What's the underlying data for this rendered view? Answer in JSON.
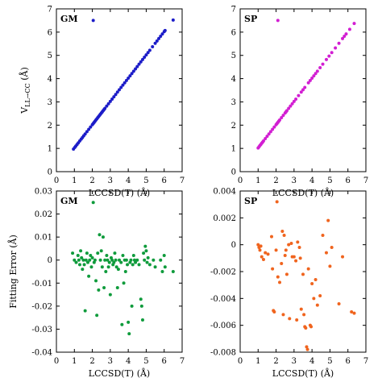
{
  "chart_data": [
    {
      "type": "scatter",
      "panel_label": "GM",
      "xlabel": "LCCSD(T) (Å)",
      "ylabel": "V_LL→CC (Å)",
      "ylabel_main": "V",
      "ylabel_sub": "LL→CC",
      "ylabel_unit": " (Å)",
      "xlim": [
        0,
        7
      ],
      "ylim": [
        0,
        7
      ],
      "xticks": [
        "0",
        "1",
        "2",
        "3",
        "4",
        "5",
        "6",
        "7"
      ],
      "yticks": [
        "0",
        "1",
        "2",
        "3",
        "4",
        "5",
        "6",
        "7"
      ],
      "color": "#1c1cc8",
      "legend_marker": [
        2.05,
        6.5
      ],
      "points": [
        [
          0.95,
          0.97
        ],
        [
          1.02,
          1.04
        ],
        [
          1.08,
          1.1
        ],
        [
          1.15,
          1.17
        ],
        [
          1.22,
          1.24
        ],
        [
          1.3,
          1.32
        ],
        [
          1.38,
          1.4
        ],
        [
          1.45,
          1.47
        ],
        [
          1.52,
          1.54
        ],
        [
          1.6,
          1.62
        ],
        [
          1.7,
          1.72
        ],
        [
          1.8,
          1.82
        ],
        [
          1.9,
          1.92
        ],
        [
          2.0,
          2.02
        ],
        [
          2.05,
          2.07
        ],
        [
          2.1,
          2.12
        ],
        [
          2.15,
          2.17
        ],
        [
          2.2,
          2.22
        ],
        [
          2.25,
          2.27
        ],
        [
          2.3,
          2.32
        ],
        [
          2.35,
          2.37
        ],
        [
          2.4,
          2.42
        ],
        [
          2.45,
          2.47
        ],
        [
          2.5,
          2.52
        ],
        [
          2.55,
          2.57
        ],
        [
          2.6,
          2.62
        ],
        [
          2.65,
          2.67
        ],
        [
          2.7,
          2.72
        ],
        [
          2.8,
          2.82
        ],
        [
          2.9,
          2.92
        ],
        [
          3.0,
          3.02
        ],
        [
          3.1,
          3.12
        ],
        [
          3.2,
          3.22
        ],
        [
          3.3,
          3.32
        ],
        [
          3.4,
          3.42
        ],
        [
          3.5,
          3.52
        ],
        [
          3.6,
          3.62
        ],
        [
          3.7,
          3.72
        ],
        [
          3.8,
          3.82
        ],
        [
          3.9,
          3.92
        ],
        [
          4.0,
          4.02
        ],
        [
          4.1,
          4.12
        ],
        [
          4.2,
          4.22
        ],
        [
          4.3,
          4.32
        ],
        [
          4.4,
          4.42
        ],
        [
          4.5,
          4.52
        ],
        [
          4.6,
          4.62
        ],
        [
          4.7,
          4.72
        ],
        [
          4.8,
          4.82
        ],
        [
          4.9,
          4.92
        ],
        [
          5.0,
          5.02
        ],
        [
          5.1,
          5.12
        ],
        [
          5.2,
          5.22
        ],
        [
          5.35,
          5.37
        ],
        [
          5.5,
          5.52
        ],
        [
          5.6,
          5.62
        ],
        [
          5.7,
          5.72
        ],
        [
          5.8,
          5.82
        ],
        [
          5.9,
          5.92
        ],
        [
          6.0,
          6.02
        ],
        [
          6.05,
          6.07
        ],
        [
          6.5,
          6.52
        ]
      ]
    },
    {
      "type": "scatter",
      "panel_label": "SP",
      "xlabel": "LCCSD(T) (Å)",
      "ylabel": "",
      "xlim": [
        0,
        7
      ],
      "ylim": [
        0,
        7
      ],
      "xticks": [
        "0",
        "1",
        "2",
        "3",
        "4",
        "5",
        "6",
        "7"
      ],
      "yticks": [
        "0",
        "1",
        "2",
        "3",
        "4",
        "5",
        "6",
        "7"
      ],
      "color": "#d21ed2",
      "legend_marker": [
        2.1,
        6.5
      ],
      "points": [
        [
          1.0,
          1.02
        ],
        [
          1.05,
          1.07
        ],
        [
          1.1,
          1.12
        ],
        [
          1.15,
          1.17
        ],
        [
          1.2,
          1.22
        ],
        [
          1.25,
          1.27
        ],
        [
          1.3,
          1.32
        ],
        [
          1.4,
          1.42
        ],
        [
          1.5,
          1.52
        ],
        [
          1.6,
          1.62
        ],
        [
          1.7,
          1.72
        ],
        [
          1.8,
          1.82
        ],
        [
          1.9,
          1.92
        ],
        [
          2.0,
          2.02
        ],
        [
          2.05,
          2.07
        ],
        [
          2.1,
          2.12
        ],
        [
          2.15,
          2.17
        ],
        [
          2.2,
          2.22
        ],
        [
          2.3,
          2.32
        ],
        [
          2.4,
          2.42
        ],
        [
          2.5,
          2.52
        ],
        [
          2.55,
          2.57
        ],
        [
          2.6,
          2.62
        ],
        [
          2.7,
          2.72
        ],
        [
          2.8,
          2.82
        ],
        [
          2.9,
          2.92
        ],
        [
          3.0,
          3.02
        ],
        [
          3.1,
          3.12
        ],
        [
          3.25,
          3.27
        ],
        [
          3.4,
          3.42
        ],
        [
          3.5,
          3.52
        ],
        [
          3.6,
          3.62
        ],
        [
          3.8,
          3.82
        ],
        [
          3.9,
          3.92
        ],
        [
          4.0,
          4.02
        ],
        [
          4.1,
          4.12
        ],
        [
          4.2,
          4.22
        ],
        [
          4.3,
          4.32
        ],
        [
          4.45,
          4.47
        ],
        [
          4.6,
          4.62
        ],
        [
          4.8,
          4.82
        ],
        [
          4.95,
          4.97
        ],
        [
          5.1,
          5.12
        ],
        [
          5.3,
          5.32
        ],
        [
          5.5,
          5.52
        ],
        [
          5.7,
          5.72
        ],
        [
          5.8,
          5.82
        ],
        [
          5.9,
          5.92
        ],
        [
          6.1,
          6.12
        ],
        [
          6.35,
          6.37
        ]
      ]
    },
    {
      "type": "scatter",
      "panel_label": "GM",
      "xlabel": "LCCSD(T) (Å)",
      "ylabel": "Fitting Error (Å)",
      "xlim": [
        0,
        7
      ],
      "ylim": [
        -0.04,
        0.03
      ],
      "xticks": [
        "0",
        "1",
        "2",
        "3",
        "4",
        "5",
        "6",
        "7"
      ],
      "yticks": [
        "-0.04",
        "-0.03",
        "-0.02",
        "-0.01",
        "0",
        "0.01",
        "0.02",
        "0.03"
      ],
      "color": "#0f9b3c",
      "points": [
        [
          0.9,
          0.003
        ],
        [
          1.0,
          0.0
        ],
        [
          1.1,
          -0.001
        ],
        [
          1.2,
          0.002
        ],
        [
          1.25,
          0.0
        ],
        [
          1.3,
          -0.002
        ],
        [
          1.35,
          0.004
        ],
        [
          1.4,
          0.001
        ],
        [
          1.45,
          -0.004
        ],
        [
          1.5,
          0.0
        ],
        [
          1.55,
          -0.002
        ],
        [
          1.6,
          -0.022
        ],
        [
          1.65,
          0.0
        ],
        [
          1.7,
          0.003
        ],
        [
          1.75,
          -0.001
        ],
        [
          1.8,
          -0.007
        ],
        [
          1.85,
          0.0
        ],
        [
          1.9,
          0.002
        ],
        [
          1.95,
          -0.003
        ],
        [
          2.0,
          0.001
        ],
        [
          2.05,
          0.025
        ],
        [
          2.1,
          -0.001
        ],
        [
          2.15,
          0.0
        ],
        [
          2.2,
          -0.009
        ],
        [
          2.25,
          -0.024
        ],
        [
          2.3,
          0.003
        ],
        [
          2.35,
          -0.013
        ],
        [
          2.4,
          0.011
        ],
        [
          2.45,
          0.0
        ],
        [
          2.5,
          0.004
        ],
        [
          2.55,
          -0.003
        ],
        [
          2.6,
          0.01
        ],
        [
          2.65,
          -0.012
        ],
        [
          2.7,
          0.0
        ],
        [
          2.75,
          -0.005
        ],
        [
          2.8,
          0.002
        ],
        [
          2.85,
          0.0
        ],
        [
          2.9,
          -0.003
        ],
        [
          2.95,
          -0.001
        ],
        [
          3.0,
          -0.015
        ],
        [
          3.05,
          0.001
        ],
        [
          3.1,
          0.0
        ],
        [
          3.15,
          -0.002
        ],
        [
          3.2,
          -0.001
        ],
        [
          3.25,
          0.003
        ],
        [
          3.3,
          0.0
        ],
        [
          3.35,
          -0.003
        ],
        [
          3.4,
          -0.012
        ],
        [
          3.45,
          -0.004
        ],
        [
          3.5,
          0.0
        ],
        [
          3.6,
          -0.001
        ],
        [
          3.65,
          -0.028
        ],
        [
          3.7,
          0.002
        ],
        [
          3.75,
          -0.01
        ],
        [
          3.8,
          0.0
        ],
        [
          3.85,
          -0.005
        ],
        [
          3.9,
          0.0
        ],
        [
          3.95,
          -0.002
        ],
        [
          4.0,
          -0.027
        ],
        [
          4.05,
          -0.032
        ],
        [
          4.1,
          -0.001
        ],
        [
          4.15,
          0.0
        ],
        [
          4.2,
          -0.02
        ],
        [
          4.25,
          -0.002
        ],
        [
          4.3,
          0.002
        ],
        [
          4.35,
          0.0
        ],
        [
          4.4,
          -0.001
        ],
        [
          4.5,
          0.0
        ],
        [
          4.6,
          -0.002
        ],
        [
          4.7,
          -0.017
        ],
        [
          4.75,
          -0.02
        ],
        [
          4.8,
          -0.026
        ],
        [
          4.85,
          0.003
        ],
        [
          4.9,
          0.0
        ],
        [
          4.95,
          0.006
        ],
        [
          5.0,
          0.004
        ],
        [
          5.05,
          -0.001
        ],
        [
          5.1,
          0.001
        ],
        [
          5.2,
          -0.002
        ],
        [
          5.4,
          0.0
        ],
        [
          5.5,
          -0.003
        ],
        [
          5.8,
          0.0
        ],
        [
          5.9,
          -0.005
        ],
        [
          6.0,
          0.002
        ],
        [
          6.05,
          -0.003
        ],
        [
          6.5,
          -0.005
        ]
      ]
    },
    {
      "type": "scatter",
      "panel_label": "SP",
      "xlabel": "LCCSD(T) (Å)",
      "ylabel": "",
      "xlim": [
        0,
        7
      ],
      "ylim": [
        -0.008,
        0.004
      ],
      "xticks": [
        "0",
        "1",
        "2",
        "3",
        "4",
        "5",
        "6",
        "7"
      ],
      "yticks": [
        "-0.008",
        "-0.006",
        "-0.004",
        "-0.002",
        "0",
        "0.002",
        "0.004"
      ],
      "color": "#f0641e",
      "points": [
        [
          1.0,
          0.0
        ],
        [
          1.05,
          -0.0002
        ],
        [
          1.1,
          -0.0004
        ],
        [
          1.15,
          -0.0001
        ],
        [
          1.2,
          -0.0009
        ],
        [
          1.3,
          -0.0011
        ],
        [
          1.4,
          -0.0006
        ],
        [
          1.55,
          -0.0007
        ],
        [
          1.75,
          0.0006
        ],
        [
          1.8,
          -0.0018
        ],
        [
          1.85,
          -0.0049
        ],
        [
          1.9,
          -0.005
        ],
        [
          2.0,
          -0.0004
        ],
        [
          2.05,
          0.0032
        ],
        [
          2.1,
          -0.0024
        ],
        [
          2.2,
          -0.0028
        ],
        [
          2.3,
          -0.0014
        ],
        [
          2.35,
          0.001
        ],
        [
          2.4,
          -0.0052
        ],
        [
          2.45,
          0.0007
        ],
        [
          2.5,
          -0.0008
        ],
        [
          2.55,
          -0.0004
        ],
        [
          2.6,
          -0.0022
        ],
        [
          2.7,
          0.0
        ],
        [
          2.75,
          -0.0055
        ],
        [
          2.85,
          0.0001
        ],
        [
          2.9,
          -0.0009
        ],
        [
          3.0,
          -0.0009
        ],
        [
          3.1,
          -0.0012
        ],
        [
          3.15,
          -0.0056
        ],
        [
          3.2,
          0.0002
        ],
        [
          3.3,
          -0.0002
        ],
        [
          3.35,
          -0.001
        ],
        [
          3.4,
          -0.0048
        ],
        [
          3.5,
          -0.0022
        ],
        [
          3.55,
          -0.0052
        ],
        [
          3.6,
          -0.0061
        ],
        [
          3.65,
          -0.0062
        ],
        [
          3.7,
          -0.0076
        ],
        [
          3.75,
          -0.0078
        ],
        [
          3.8,
          -0.0018
        ],
        [
          3.9,
          -0.006
        ],
        [
          3.95,
          -0.0061
        ],
        [
          4.0,
          -0.0029
        ],
        [
          4.1,
          -0.004
        ],
        [
          4.2,
          -0.0026
        ],
        [
          4.3,
          -0.0045
        ],
        [
          4.45,
          -0.0038
        ],
        [
          4.6,
          0.0007
        ],
        [
          4.8,
          -0.0006
        ],
        [
          4.9,
          0.0018
        ],
        [
          5.0,
          -0.0016
        ],
        [
          5.1,
          -0.0002
        ],
        [
          5.5,
          -0.0044
        ],
        [
          5.7,
          -0.0009
        ],
        [
          6.2,
          -0.005
        ],
        [
          6.35,
          -0.0051
        ]
      ]
    }
  ]
}
